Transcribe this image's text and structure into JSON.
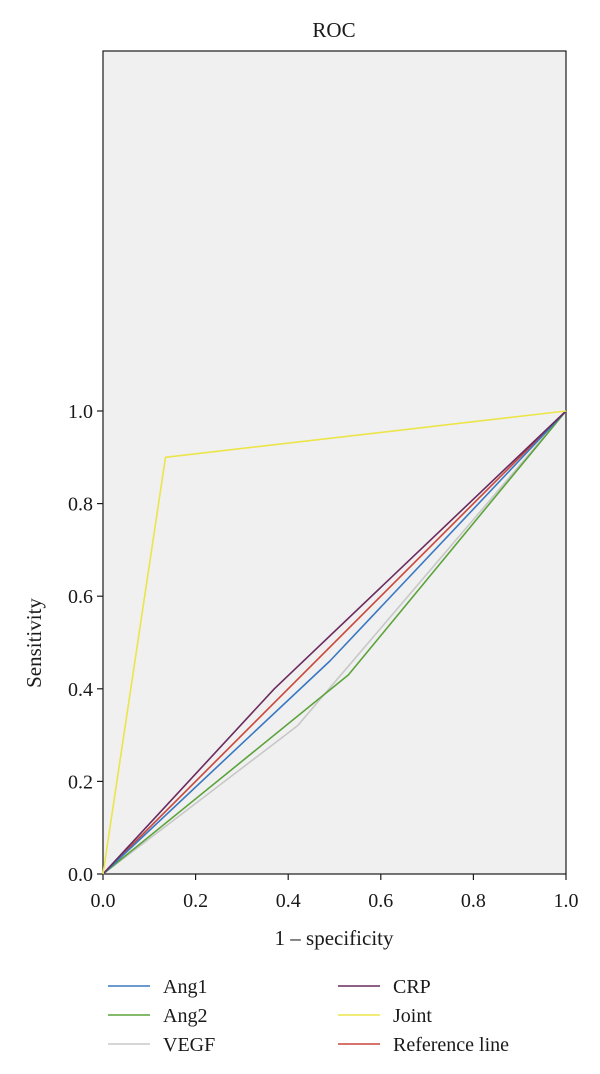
{
  "chart_data": {
    "type": "line",
    "title": "ROC",
    "xlabel": "1 – specificity",
    "ylabel": "Sensitivity",
    "xlim": [
      0.0,
      1.0
    ],
    "ylim": [
      0.0,
      1.0
    ],
    "x_ticks": [
      "0.0",
      "0.2",
      "0.4",
      "0.6",
      "0.8",
      "1.0"
    ],
    "y_ticks": [
      "0.0",
      "0.2",
      "0.4",
      "0.6",
      "0.8",
      "1.0"
    ],
    "grid": false,
    "legend_position": "bottom",
    "plot_background": "#f0f0f0",
    "series": [
      {
        "name": "Ang1",
        "color": "#3a78c2",
        "points": [
          [
            0.0,
            0.0
          ],
          [
            0.49,
            0.46
          ],
          [
            1.0,
            1.0
          ]
        ]
      },
      {
        "name": "Ang2",
        "color": "#5ba33a",
        "points": [
          [
            0.0,
            0.0
          ],
          [
            0.53,
            0.43
          ],
          [
            1.0,
            1.0
          ]
        ]
      },
      {
        "name": "VEGF",
        "color": "#c8c8c8",
        "points": [
          [
            0.0,
            0.0
          ],
          [
            0.42,
            0.32
          ],
          [
            1.0,
            1.0
          ]
        ]
      },
      {
        "name": "CRP",
        "color": "#6b2a5e",
        "points": [
          [
            0.0,
            0.0
          ],
          [
            0.37,
            0.4
          ],
          [
            1.0,
            1.0
          ]
        ]
      },
      {
        "name": "Joint",
        "color": "#ebe54a",
        "points": [
          [
            0.0,
            0.0
          ],
          [
            0.135,
            0.9
          ],
          [
            1.0,
            1.0
          ]
        ]
      },
      {
        "name": "Reference line",
        "color": "#c9453a",
        "points": [
          [
            0.0,
            0.0
          ],
          [
            1.0,
            1.0
          ]
        ]
      }
    ]
  }
}
